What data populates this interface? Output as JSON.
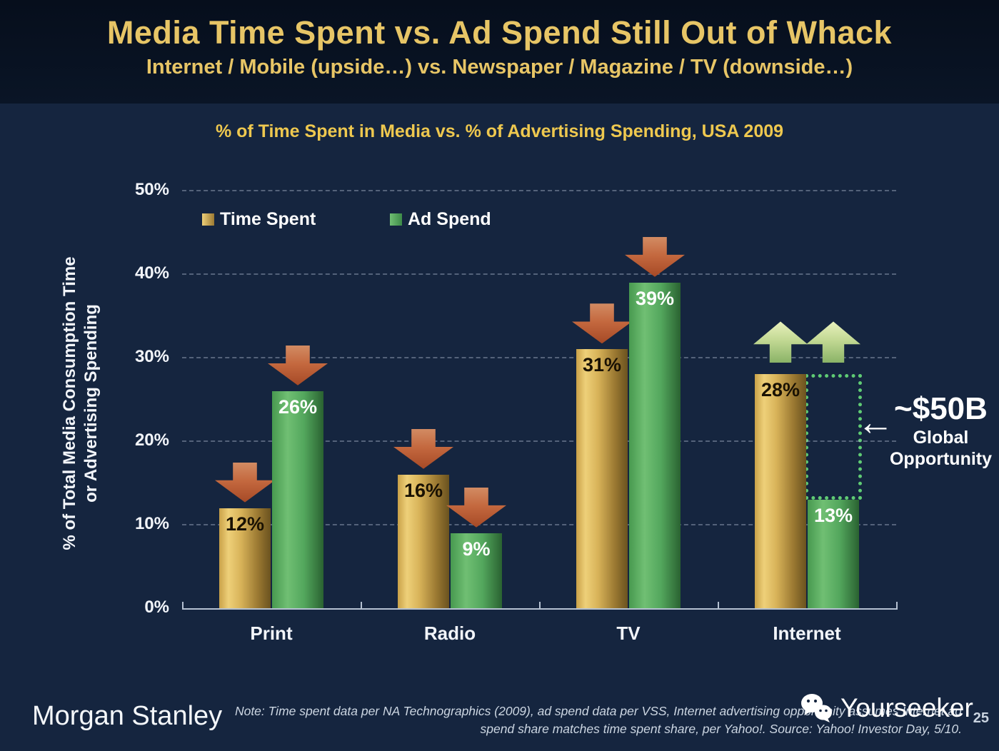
{
  "slide": {
    "title": "Media Time Spent vs. Ad Spend Still Out of Whack",
    "subtitle": "Internet / Mobile (upside…) vs. Newspaper / Magazine / TV (downside…)",
    "page_number": "25"
  },
  "chart_data": {
    "type": "bar",
    "title": "% of Time Spent in Media vs. % of Advertising Spending, USA 2009",
    "categories": [
      "Print",
      "Radio",
      "TV",
      "Internet"
    ],
    "series": [
      {
        "name": "Time Spent",
        "values": [
          12,
          16,
          31,
          28
        ],
        "labels": [
          "12%",
          "16%",
          "31%",
          "28%"
        ],
        "trend": [
          "down",
          "down",
          "down",
          "up"
        ],
        "color": "#d8b359"
      },
      {
        "name": "Ad Spend",
        "values": [
          26,
          9,
          39,
          13
        ],
        "labels": [
          "26%",
          "9%",
          "39%",
          "13%"
        ],
        "trend": [
          "down",
          "down",
          "down",
          "up"
        ],
        "color": "#53a75d"
      }
    ],
    "ylabel": "% of Total Media Consumption Time or Advertising Spending",
    "ylabel_line1": "% of Total Media Consumption Time",
    "ylabel_line2": "or Advertising Spending",
    "yticks": [
      "0%",
      "10%",
      "20%",
      "30%",
      "40%",
      "50%"
    ],
    "ytick_values": [
      0,
      10,
      20,
      30,
      40,
      50
    ],
    "ylim": [
      0,
      50
    ],
    "grid": "dashed horizontal gridlines at each 10%",
    "legend_position": "top-left inside plot",
    "annotation_box": {
      "category": "Internet",
      "from_pct": 13,
      "to_pct": 28
    }
  },
  "annotation": {
    "value": "~$50B",
    "label_line1": "Global",
    "label_line2": "Opportunity",
    "arrow_glyph": "←"
  },
  "footer": {
    "logo": "Morgan Stanley",
    "note_line1": "Note: Time spent data per NA Technographics (2009), ad spend data per VSS, Internet advertising opportunity assumes Internet ad",
    "note_line2": "spend share matches time spent share, per Yahoo!. Source: Yahoo! Investor Day, 5/10.",
    "watermark": "Yourseeker"
  },
  "colors": {
    "header_bg": "#081120",
    "body_bg": "#15253f",
    "title_gold": "#e7c566",
    "chart_title_gold": "#eec84f",
    "bar_gold": "#d8b359",
    "bar_green": "#53a75d",
    "down_arrow": "#c4693f",
    "up_arrow": "#c3d994",
    "opportunity_box": "#5fcb74",
    "axis": "#b5c1d2",
    "text_white": "#f2f5fa"
  }
}
